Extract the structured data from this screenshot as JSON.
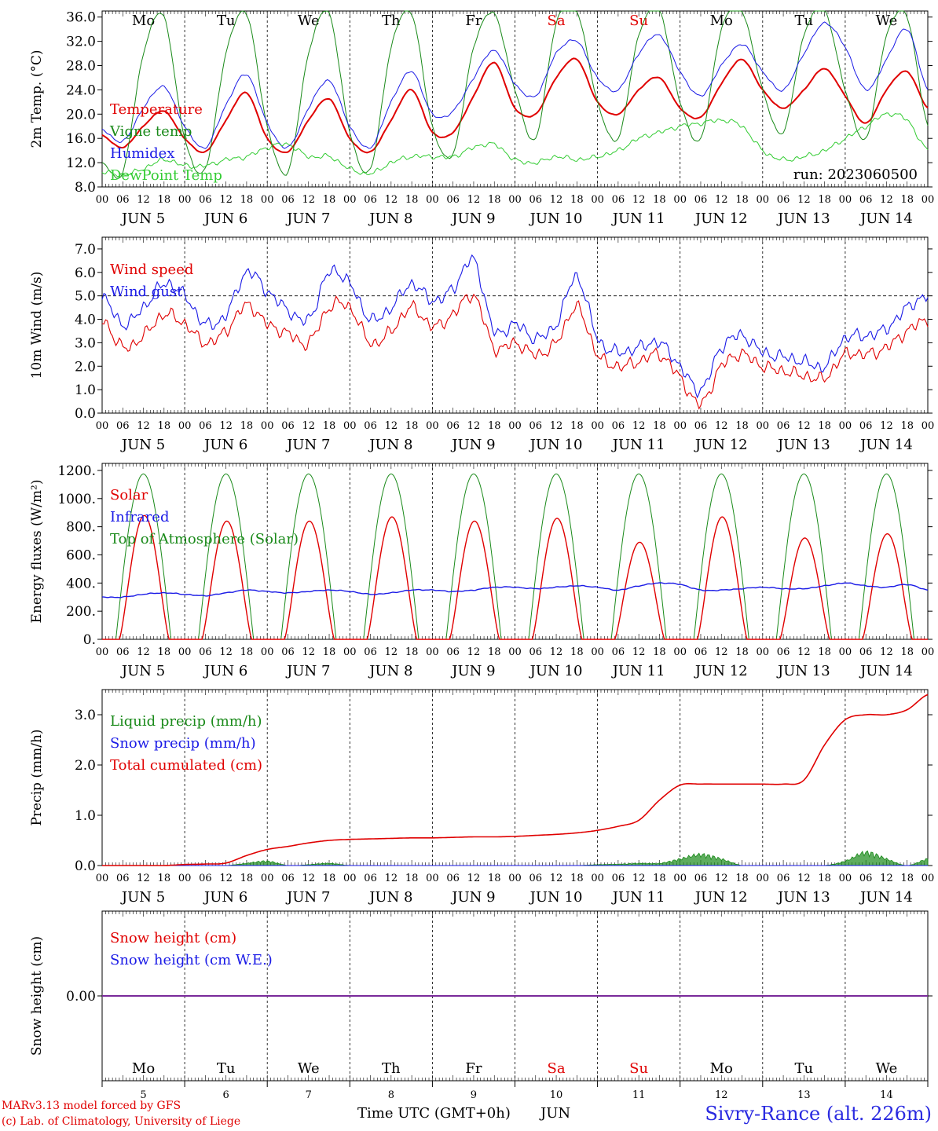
{
  "footer": {
    "credit_line1": "MARv3.13 model forced by GFS",
    "credit_line2": "(c) Lab. of Climatology, University of Liege",
    "station": "Sivry-Rance (alt. 226m)"
  },
  "colors": {
    "red": "#e00000",
    "green": "#1a8a1a",
    "blue": "#1a1ae6",
    "lightgreen": "#33cc33",
    "purple": "#7a2a9a",
    "axis": "#000000"
  },
  "chart_data": [
    {
      "type": "line",
      "ylabel": "2m Temp. (°C)",
      "ylim": [
        8,
        37
      ],
      "yticks": [
        "8.0",
        "12.0",
        "16.0",
        "20.0",
        "24.0",
        "28.0",
        "32.0",
        "36.0"
      ],
      "ytick_values": [
        8,
        12,
        16,
        20,
        24,
        28,
        32,
        36
      ],
      "weekday_labels": [
        "Mo",
        "Tu",
        "We",
        "Th",
        "Fr",
        "Sa",
        "Su",
        "Mo",
        "Tu",
        "We"
      ],
      "weekend_indices": [
        5,
        6
      ],
      "annotation": "run: 2023060500",
      "x_hours": [
        0,
        6,
        12,
        18,
        24,
        30,
        36,
        42,
        48,
        54,
        60,
        66,
        72,
        78,
        84,
        90,
        96,
        102,
        108,
        114,
        120,
        126,
        132,
        138,
        144,
        150,
        156,
        162,
        168,
        174,
        180,
        186,
        192,
        198,
        204,
        210,
        216,
        222,
        228,
        234,
        240
      ],
      "series": [
        {
          "name": "Temperature",
          "color": "red",
          "values": [
            16.5,
            14.5,
            18,
            20.5,
            16,
            13.8,
            19,
            23.5,
            16,
            13.8,
            19,
            22.5,
            16,
            13.8,
            19,
            24,
            17,
            17,
            23,
            28.5,
            21,
            20,
            26,
            29,
            22,
            20,
            24,
            26,
            21,
            19.5,
            25,
            29,
            24,
            21,
            24,
            27.5,
            23,
            18.5,
            24,
            27,
            21
          ]
        },
        {
          "name": "Vigne temp",
          "color": "green",
          "values": [
            12,
            10.5,
            30,
            36,
            16,
            11,
            30,
            36.5,
            18,
            10.5,
            30,
            36.5,
            17,
            11,
            31,
            36.5,
            18,
            13.5,
            31,
            36.5,
            24,
            16,
            35,
            37,
            22,
            16,
            33,
            37,
            22,
            16,
            34,
            37,
            24,
            17,
            33,
            37,
            24,
            16,
            33,
            36,
            18
          ]
        },
        {
          "name": "Humidex",
          "color": "blue",
          "values": [
            17.5,
            15.5,
            21,
            24.5,
            18,
            14.5,
            21.5,
            26.5,
            18.5,
            14.5,
            21,
            25.5,
            18,
            14.5,
            22,
            27,
            20,
            20.5,
            26,
            30.5,
            25,
            23,
            30,
            32,
            26,
            24,
            30,
            33,
            27,
            23,
            28,
            31.5,
            27,
            24,
            30,
            35,
            31,
            24,
            29,
            34,
            24
          ]
        },
        {
          "name": "DewPoint Temp",
          "color": "lightgreen",
          "values": [
            10.5,
            10,
            11,
            12.5,
            11.5,
            11.5,
            12.5,
            13,
            14.5,
            15,
            13,
            13,
            11,
            10.2,
            12,
            13,
            13,
            13,
            14.5,
            15,
            12.5,
            12,
            13,
            12.5,
            13,
            14,
            16,
            17,
            18,
            18.5,
            19,
            18,
            14,
            12.5,
            13,
            14,
            16,
            18,
            20,
            19,
            14
          ]
        }
      ]
    },
    {
      "type": "line",
      "ylabel": "10m Wind (m/s)",
      "ylim": [
        0,
        7.5
      ],
      "yticks": [
        "0.0",
        "1.0",
        "2.0",
        "3.0",
        "4.0",
        "5.0",
        "6.0",
        "7.0"
      ],
      "ytick_values": [
        0,
        1,
        2,
        3,
        4,
        5,
        6,
        7
      ],
      "reference_line": 5.0,
      "series": [
        {
          "name": "Wind speed",
          "color": "red",
          "values": [
            4,
            2.8,
            3.3,
            4.2,
            3.8,
            3.0,
            3.5,
            4.6,
            3.8,
            3.4,
            3.0,
            4.5,
            4.5,
            3.0,
            3.5,
            4.5,
            3.7,
            4.2,
            5.0,
            2.8,
            3.0,
            2.5,
            3.0,
            4.5,
            2.5,
            2.0,
            2.2,
            2.5,
            1.5,
            0.4,
            2.0,
            2.5,
            2.0,
            1.8,
            1.6,
            1.5,
            2.5,
            2.5,
            2.8,
            3.5,
            4.0
          ]
        },
        {
          "name": "Wind gust",
          "color": "blue",
          "values": [
            5,
            3.8,
            4.5,
            5.5,
            5.0,
            3.8,
            4.2,
            6.0,
            5.2,
            4.4,
            4.0,
            6.0,
            5.5,
            4.0,
            4.5,
            5.5,
            4.8,
            5.3,
            6.5,
            3.5,
            3.8,
            3.2,
            3.8,
            5.8,
            3.2,
            2.6,
            2.8,
            3.0,
            2.0,
            1.0,
            2.8,
            3.3,
            2.6,
            2.4,
            2.2,
            2.0,
            3.2,
            3.3,
            3.6,
            4.5,
            5.0
          ]
        }
      ]
    },
    {
      "type": "line",
      "ylabel": "Energy fluxes (W/m²)",
      "ylim": [
        0,
        1250
      ],
      "yticks": [
        "0.",
        "200.",
        "400.",
        "600.",
        "800.",
        "1000.",
        "1200."
      ],
      "ytick_values": [
        0,
        200,
        400,
        600,
        800,
        1000,
        1200
      ],
      "series": [
        {
          "name": "Solar",
          "color": "red",
          "daily_peaks": [
            880,
            840,
            840,
            870,
            840,
            860,
            690,
            870,
            720,
            750
          ]
        },
        {
          "name": "Infrared",
          "color": "blue",
          "values": [
            300,
            300,
            320,
            330,
            320,
            310,
            330,
            350,
            340,
            330,
            340,
            350,
            340,
            320,
            330,
            350,
            350,
            340,
            350,
            370,
            370,
            360,
            370,
            380,
            370,
            350,
            380,
            400,
            390,
            350,
            350,
            360,
            370,
            360,
            360,
            380,
            400,
            380,
            370,
            390,
            350
          ]
        },
        {
          "name": "Top of Atmosphere (Solar)",
          "color": "green",
          "daily_peak": 1175
        }
      ]
    },
    {
      "type": "line",
      "ylabel": "Precip (mm/h)",
      "ylim": [
        0,
        3.5
      ],
      "yticks": [
        "0.0",
        "1.0",
        "2.0",
        "3.0"
      ],
      "ytick_values": [
        0,
        1,
        2,
        3
      ],
      "series": [
        {
          "name": "Liquid precip (mm/h)",
          "color": "green",
          "values": [
            0,
            0,
            0,
            0,
            0,
            0,
            0,
            0.05,
            0.1,
            0,
            0.02,
            0.05,
            0,
            0,
            0,
            0,
            0,
            0,
            0,
            0,
            0,
            0,
            0,
            0,
            0.02,
            0.03,
            0.05,
            0.05,
            0.15,
            0.25,
            0.15,
            0,
            0,
            0,
            0,
            0,
            0.1,
            0.3,
            0.15,
            0,
            0.15
          ]
        },
        {
          "name": "Snow precip (mm/h)",
          "color": "blue",
          "values": [
            0,
            0,
            0,
            0,
            0,
            0,
            0,
            0,
            0,
            0,
            0,
            0,
            0,
            0,
            0,
            0,
            0,
            0,
            0,
            0,
            0,
            0,
            0,
            0,
            0,
            0,
            0,
            0,
            0,
            0,
            0,
            0,
            0,
            0,
            0,
            0,
            0,
            0,
            0,
            0,
            0
          ]
        },
        {
          "name": "Total cumulated (cm)",
          "color": "red",
          "values": [
            0,
            0,
            0,
            0,
            0.02,
            0.03,
            0.05,
            0.2,
            0.32,
            0.38,
            0.45,
            0.5,
            0.52,
            0.53,
            0.54,
            0.55,
            0.55,
            0.56,
            0.57,
            0.57,
            0.58,
            0.6,
            0.62,
            0.65,
            0.7,
            0.78,
            0.9,
            1.3,
            1.6,
            1.62,
            1.62,
            1.62,
            1.62,
            1.62,
            1.7,
            2.4,
            2.9,
            3.0,
            3.0,
            3.1,
            3.4
          ]
        }
      ]
    },
    {
      "type": "line",
      "ylabel": "Snow height (cm)",
      "ylim": [
        -1,
        1
      ],
      "yticks": [
        "0.00"
      ],
      "ytick_values": [
        0
      ],
      "series": [
        {
          "name": "Snow height (cm)",
          "color": "red",
          "values": [
            0,
            0
          ]
        },
        {
          "name": "Snow height (cm W.E.)",
          "color": "blue",
          "values": [
            0,
            0
          ]
        }
      ],
      "weekday_labels": [
        "Mo",
        "Tu",
        "We",
        "Th",
        "Fr",
        "Sa",
        "Su",
        "Mo",
        "Tu",
        "We"
      ],
      "weekend_indices": [
        5,
        6
      ],
      "day_numbers": [
        "5",
        "6",
        "7",
        "8",
        "9",
        "10",
        "11",
        "12",
        "13",
        "14"
      ],
      "xlabel": "Time UTC (GMT+0h)",
      "xlabel_month": "JUN"
    }
  ],
  "x_axis": {
    "hour_labels": [
      "00",
      "06",
      "12",
      "18"
    ],
    "final_hour": "00",
    "date_labels": [
      "JUN  5",
      "JUN  6",
      "JUN  7",
      "JUN  8",
      "JUN  9",
      "JUN 10",
      "JUN 11",
      "JUN 12",
      "JUN 13",
      "JUN 14"
    ]
  }
}
